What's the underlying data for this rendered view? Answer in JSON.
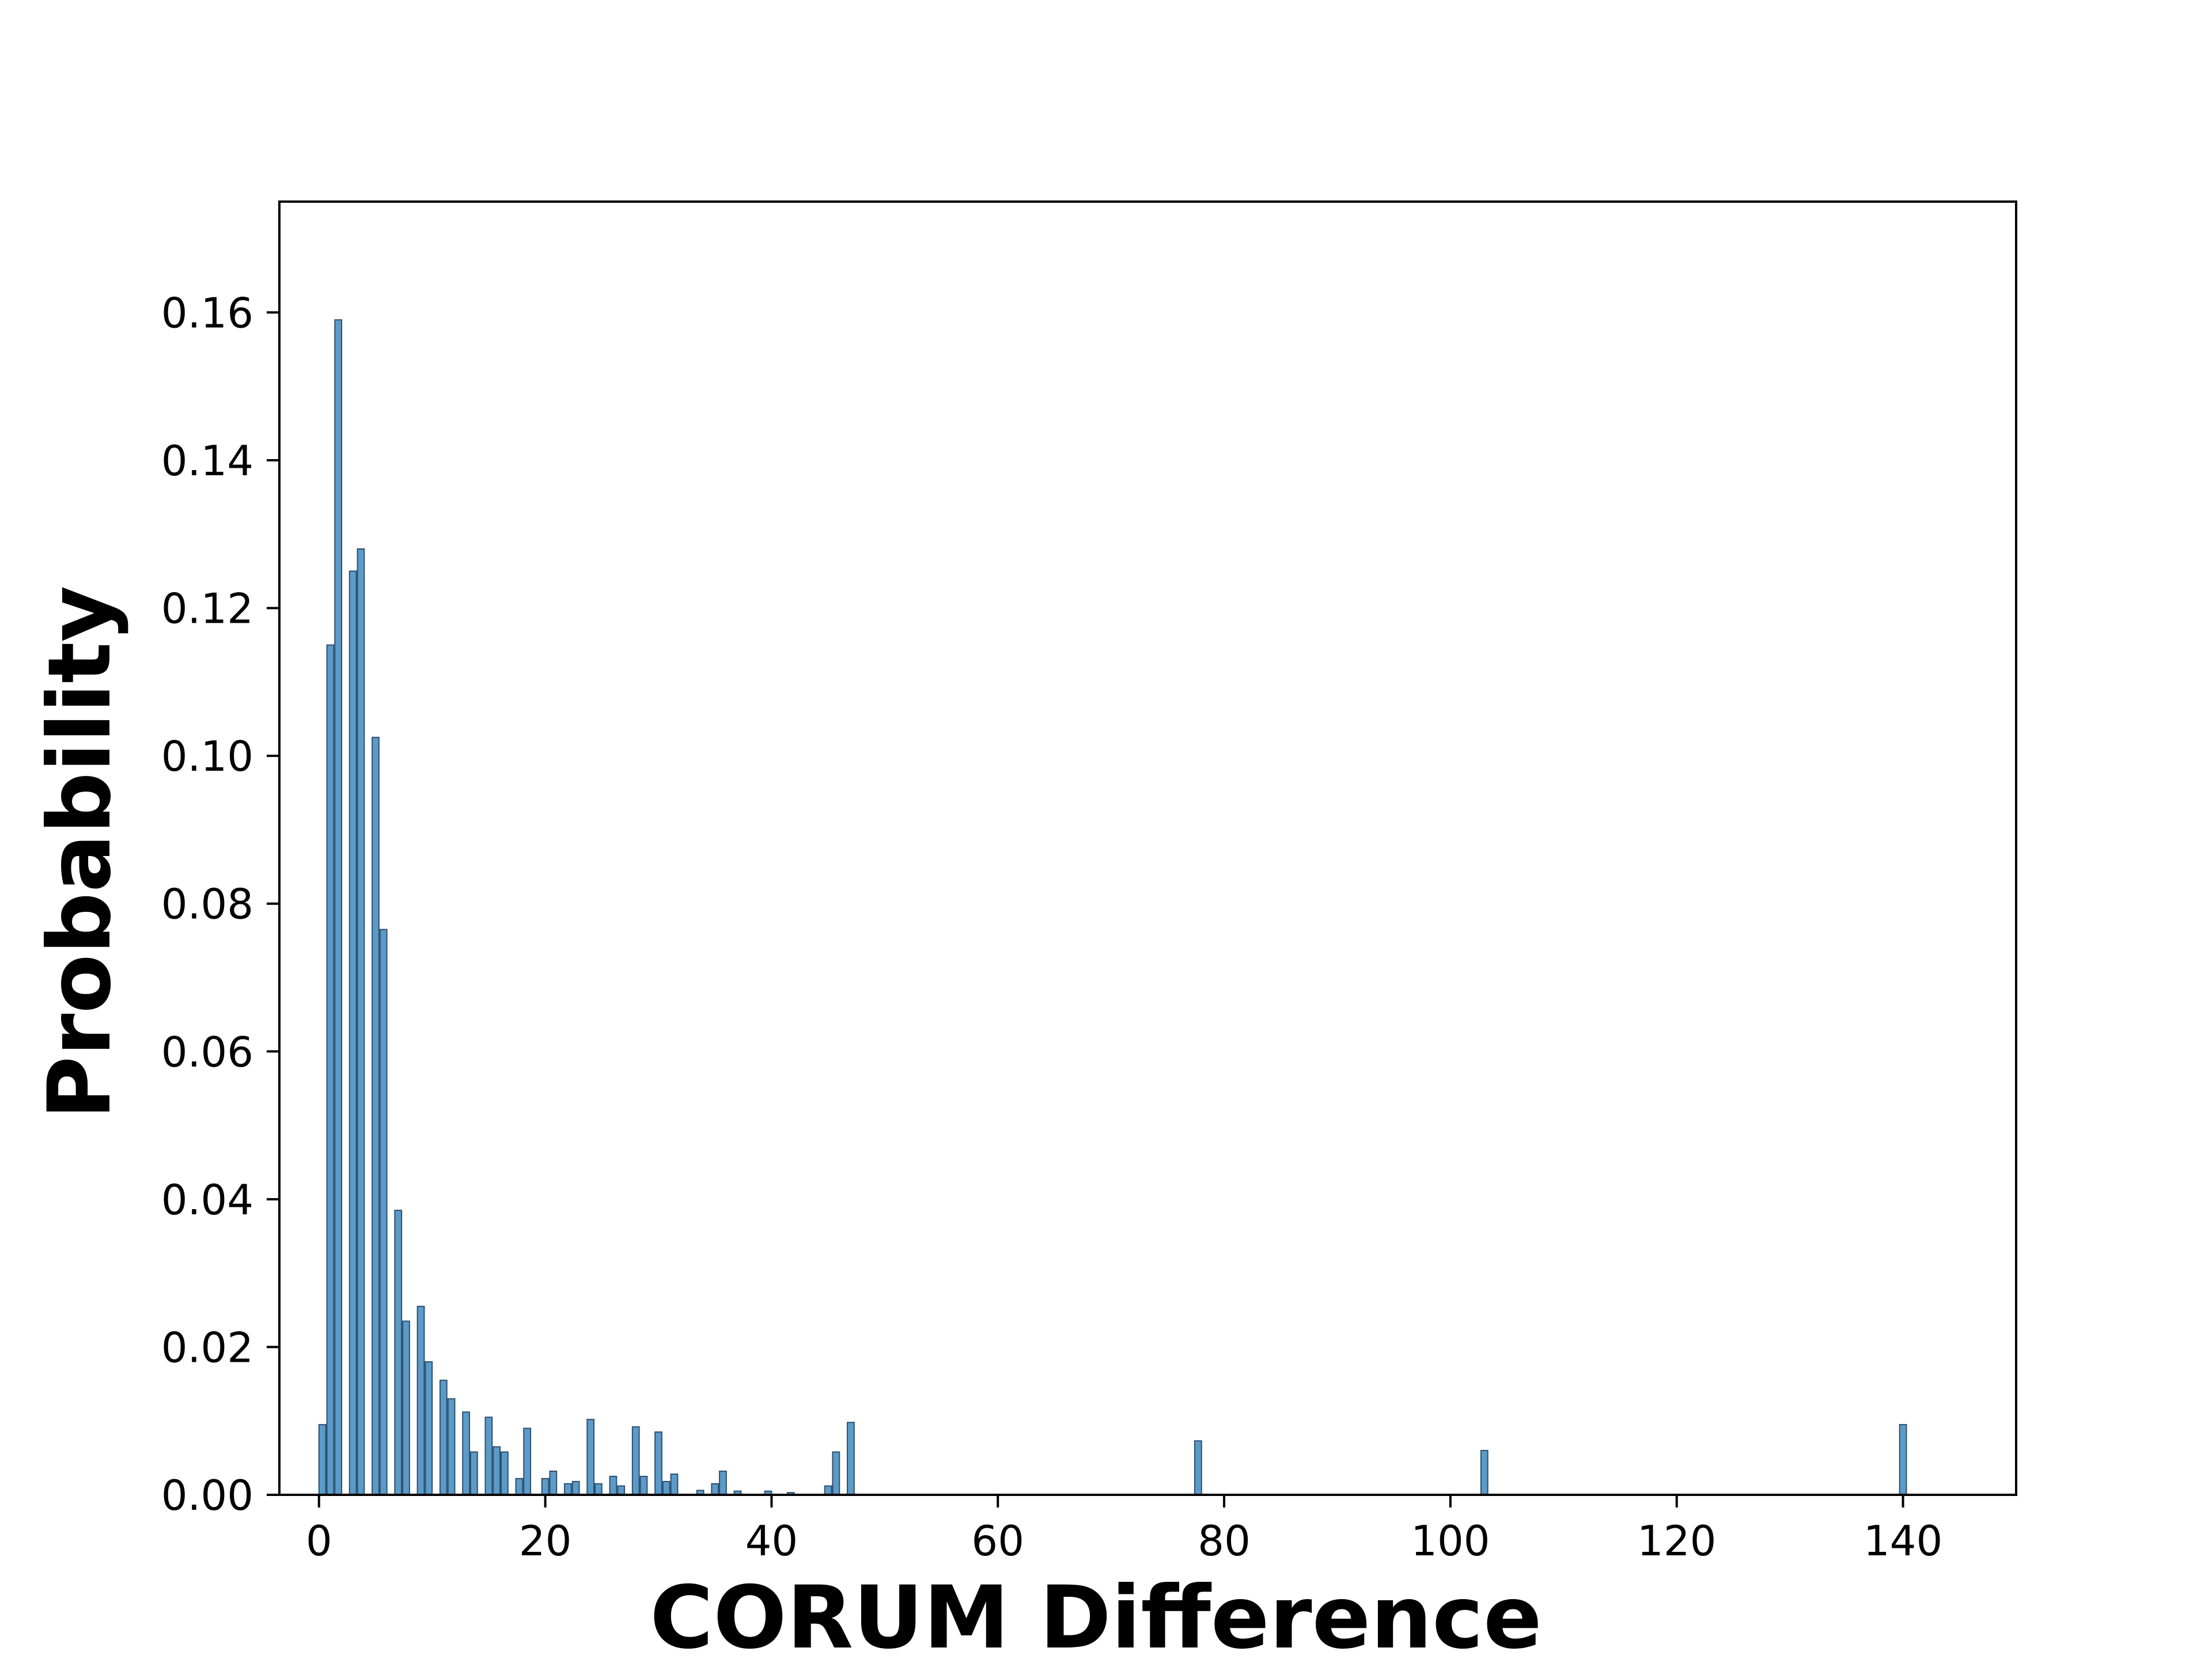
{
  "chart_data": {
    "type": "bar",
    "title": "",
    "xlabel": "CORUM Difference",
    "ylabel": "Probability",
    "xlim": [
      -3.5,
      150
    ],
    "ylim": [
      0,
      0.175
    ],
    "xticks": [
      0,
      20,
      40,
      60,
      80,
      100,
      120,
      140
    ],
    "xtick_labels": [
      "0",
      "20",
      "40",
      "60",
      "80",
      "100",
      "120",
      "140"
    ],
    "yticks": [
      0,
      0.02,
      0.04,
      0.06,
      0.08,
      0.1,
      0.12,
      0.14,
      0.16
    ],
    "ytick_labels": [
      "0.00",
      "0.02",
      "0.04",
      "0.06",
      "0.08",
      "0.10",
      "0.12",
      "0.14",
      "0.16"
    ],
    "bar_color": "#5b9bc8",
    "edge_color": "#2f4f6f",
    "bin_width": 0.6,
    "x": [
      0.3,
      1.0,
      1.7,
      3.0,
      3.7,
      5.0,
      5.7,
      7.0,
      7.7,
      9.0,
      9.7,
      11.0,
      11.7,
      13.0,
      13.7,
      15.0,
      15.7,
      16.4,
      17.7,
      18.4,
      20.0,
      20.7,
      22.0,
      22.7,
      24.0,
      24.7,
      26.0,
      26.7,
      28.0,
      28.7,
      30.0,
      30.7,
      31.4,
      33.7,
      35.0,
      35.7,
      37.0,
      39.7,
      41.7,
      45.0,
      45.7,
      47.0,
      77.7,
      103.0,
      140.0
    ],
    "values": [
      0.0095,
      0.115,
      0.159,
      0.125,
      0.128,
      0.1025,
      0.0765,
      0.0385,
      0.0235,
      0.0255,
      0.018,
      0.0155,
      0.013,
      0.0112,
      0.0058,
      0.0105,
      0.0065,
      0.0058,
      0.0022,
      0.009,
      0.0022,
      0.0032,
      0.0015,
      0.0018,
      0.0102,
      0.0015,
      0.0025,
      0.0012,
      0.0092,
      0.0025,
      0.0085,
      0.0018,
      0.0028,
      0.0006,
      0.0015,
      0.0032,
      0.0005,
      0.0005,
      0.0003,
      0.0012,
      0.0058,
      0.0098,
      0.0073,
      0.006,
      0.0095
    ]
  }
}
